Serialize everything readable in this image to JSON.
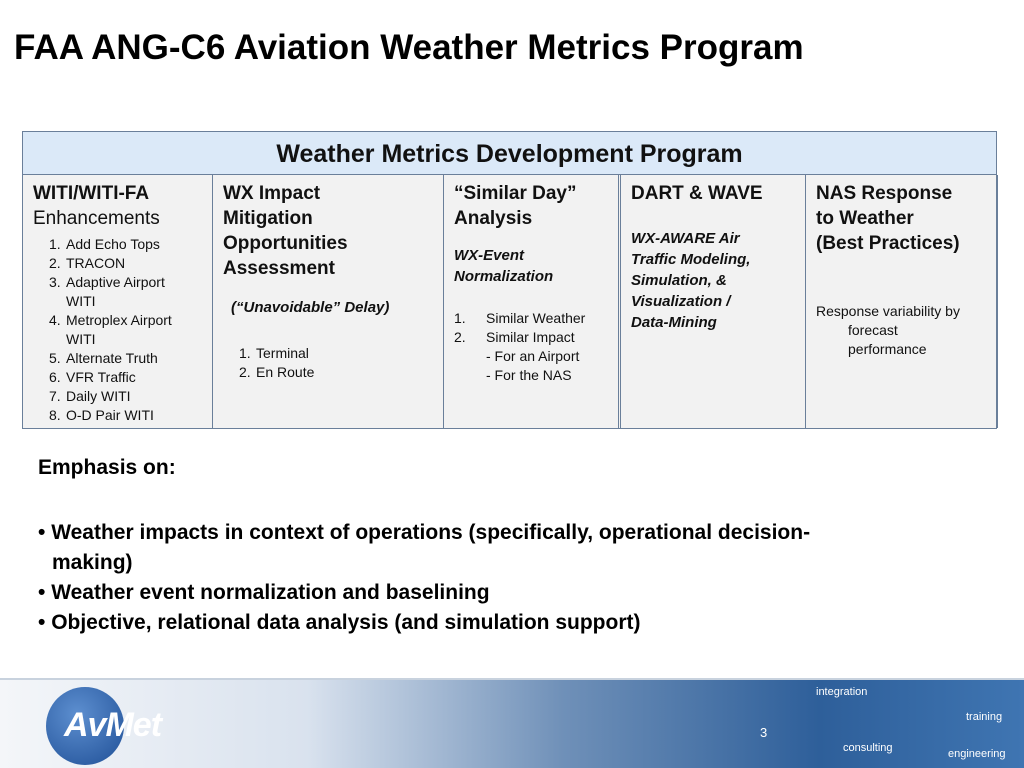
{
  "title": "FAA ANG-C6 Aviation Weather Metrics Program",
  "table": {
    "heading": "Weather Metrics Development Program",
    "columns": [
      {
        "title": [
          "WITI/WITI-FA"
        ],
        "subtitle": "Enhancements",
        "items": [
          {
            "num": "1.",
            "text": "Add Echo Tops"
          },
          {
            "num": "2.",
            "text": "TRACON"
          },
          {
            "num": "3.",
            "text": "Adaptive Airport WITI"
          },
          {
            "num": "4.",
            "text": "Metroplex Airport WITI"
          },
          {
            "num": "5.",
            "text": "Alternate Truth"
          },
          {
            "num": "6.",
            "text": "VFR Traffic"
          },
          {
            "num": "7.",
            "text": "Daily WITI"
          },
          {
            "num": "8.",
            "text": "O-D Pair WITI"
          }
        ]
      },
      {
        "title": [
          "WX Impact",
          "Mitigation",
          "Opportunities",
          "Assessment"
        ],
        "note": [
          "(“Unavoidable” Delay)"
        ],
        "items": [
          {
            "num": "1.",
            "text": "Terminal"
          },
          {
            "num": "2.",
            "text": "En Route"
          }
        ]
      },
      {
        "title": [
          "“Similar Day”",
          "Analysis"
        ],
        "note": [
          "WX-Event",
          "Normalization"
        ],
        "items": [
          {
            "num": "1.",
            "text": "Similar Weather"
          },
          {
            "num": "2.",
            "text": "Similar Impact"
          }
        ],
        "subitems": [
          "- For an Airport",
          "- For the NAS"
        ]
      },
      {
        "title": [
          "DART & WAVE"
        ],
        "note": [
          "WX-AWARE Air",
          "Traffic Modeling,",
          "Simulation, &",
          "Visualization /",
          "Data-Mining"
        ]
      },
      {
        "title": [
          "NAS Response",
          "to Weather",
          "(Best Practices)"
        ],
        "text": [
          "Response variability by",
          "forecast",
          "performance"
        ]
      }
    ]
  },
  "emphasis": {
    "heading": "Emphasis on:",
    "bullets": [
      "Weather impacts in context of operations (specifically, operational decision-making)",
      "Weather event normalization and baselining",
      "Objective, relational data analysis (and simulation support)"
    ]
  },
  "footer": {
    "logo": "AvMet",
    "page_number": "3",
    "words": [
      "integration",
      "training",
      "consulting",
      "engineering"
    ]
  }
}
